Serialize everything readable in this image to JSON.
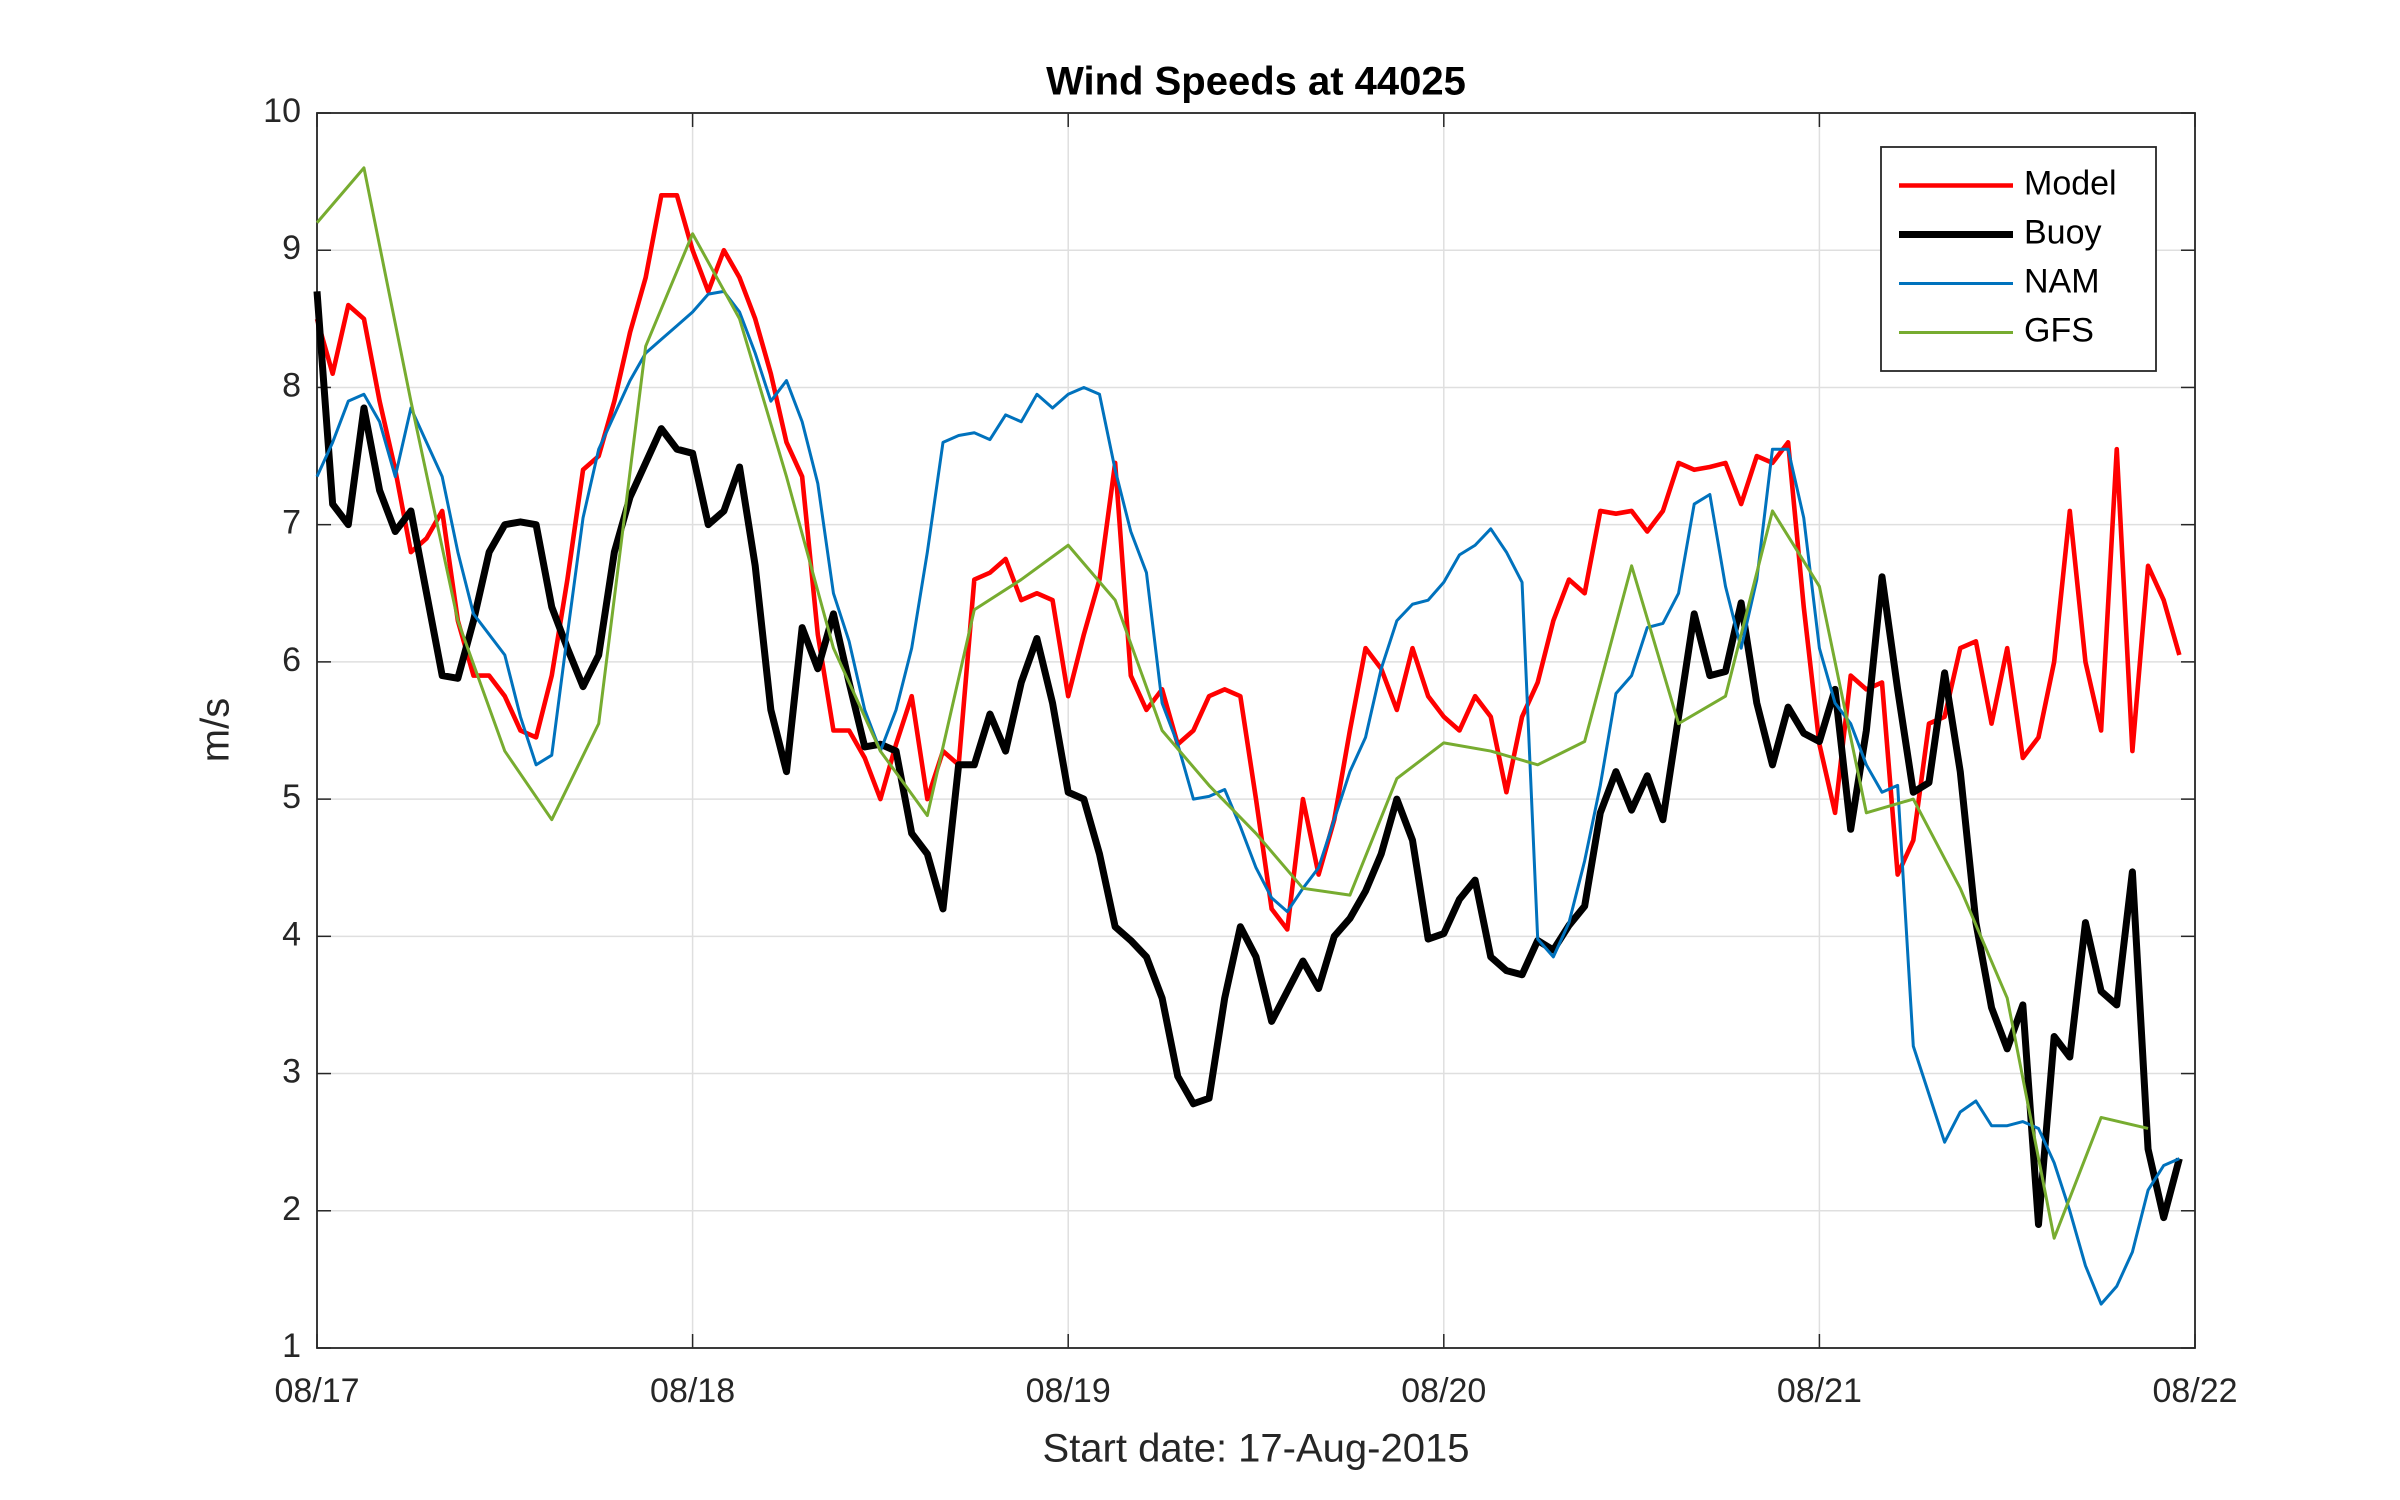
{
  "chart_data": {
    "type": "line",
    "title": "Wind Speeds at 44025",
    "x_label": "Start date: 17-Aug-2015",
    "y_label": "m/s",
    "xlim": [
      0,
      120
    ],
    "xticks": [
      {
        "value": 0,
        "label": "08/17"
      },
      {
        "value": 24,
        "label": "08/18"
      },
      {
        "value": 48,
        "label": "08/19"
      },
      {
        "value": 72,
        "label": "08/20"
      },
      {
        "value": 96,
        "label": "08/21"
      },
      {
        "value": 120,
        "label": "08/22"
      }
    ],
    "ylim": [
      1,
      10
    ],
    "yticks": [
      1,
      2,
      3,
      4,
      5,
      6,
      7,
      8,
      9,
      10
    ],
    "grid": true,
    "legend": "northeast",
    "x": [
      0,
      1,
      2,
      3,
      4,
      5,
      6,
      7,
      8,
      9,
      10,
      11,
      12,
      13,
      14,
      15,
      16,
      17,
      18,
      19,
      20,
      21,
      22,
      23,
      24,
      25,
      26,
      27,
      28,
      29,
      30,
      31,
      32,
      33,
      34,
      35,
      36,
      37,
      38,
      39,
      40,
      41,
      42,
      43,
      44,
      45,
      46,
      47,
      48,
      49,
      50,
      51,
      52,
      53,
      54,
      55,
      56,
      57,
      58,
      59,
      60,
      61,
      62,
      63,
      64,
      65,
      66,
      67,
      68,
      69,
      70,
      71,
      72,
      73,
      74,
      75,
      76,
      77,
      78,
      79,
      80,
      81,
      82,
      83,
      84,
      85,
      86,
      87,
      88,
      89,
      90,
      91,
      92,
      93,
      94,
      95,
      96,
      97,
      98,
      99,
      100,
      101,
      102,
      103,
      104,
      105,
      106,
      107,
      108,
      109,
      110,
      111,
      112,
      113,
      114,
      115,
      116,
      117,
      118,
      119
    ],
    "series": [
      {
        "name": "Model",
        "color": "#ff0000",
        "width": 4.6,
        "values": [
          8.5,
          8.1,
          8.6,
          8.5,
          7.9,
          7.4,
          6.8,
          6.9,
          7.1,
          6.3,
          5.9,
          5.9,
          5.75,
          5.5,
          5.45,
          5.9,
          6.6,
          7.4,
          7.5,
          7.9,
          8.4,
          8.8,
          9.4,
          9.4,
          9.0,
          8.7,
          9.0,
          8.8,
          8.5,
          8.1,
          7.6,
          7.35,
          6.2,
          5.5,
          5.5,
          5.3,
          5.0,
          5.4,
          5.75,
          5.0,
          5.35,
          5.25,
          6.6,
          6.65,
          6.75,
          6.45,
          6.5,
          6.45,
          5.75,
          6.2,
          6.6,
          7.45,
          5.9,
          5.65,
          5.8,
          5.4,
          5.5,
          5.75,
          5.8,
          5.75,
          5.0,
          4.2,
          4.05,
          5.0,
          4.45,
          4.85,
          5.5,
          6.1,
          5.95,
          5.65,
          6.1,
          5.75,
          5.6,
          5.5,
          5.75,
          5.6,
          5.05,
          5.6,
          5.85,
          6.3,
          6.6,
          6.5,
          7.1,
          7.08,
          7.1,
          6.95,
          7.1,
          7.45,
          7.4,
          7.42,
          7.45,
          7.15,
          7.5,
          7.45,
          7.6,
          6.4,
          5.4,
          4.9,
          5.9,
          5.8,
          5.85,
          4.45,
          4.7,
          5.55,
          5.6,
          6.1,
          6.15,
          5.55,
          6.1,
          5.3,
          5.45,
          6.0,
          7.1,
          6.0,
          5.5,
          7.55,
          5.35,
          6.7,
          6.45,
          6.05
        ]
      },
      {
        "name": "Buoy",
        "color": "#000000",
        "width": 7,
        "values": [
          8.7,
          7.15,
          7.0,
          7.85,
          7.25,
          6.95,
          7.1,
          6.5,
          5.9,
          5.88,
          6.3,
          6.8,
          7.0,
          7.02,
          7.0,
          6.4,
          6.1,
          5.82,
          6.05,
          6.8,
          7.2,
          7.45,
          7.7,
          7.55,
          7.52,
          7.0,
          7.1,
          7.42,
          6.7,
          5.65,
          5.2,
          6.25,
          5.95,
          6.35,
          5.85,
          5.38,
          5.4,
          5.35,
          4.75,
          4.6,
          4.2,
          5.25,
          5.25,
          5.62,
          5.35,
          5.85,
          6.17,
          5.7,
          5.05,
          5.0,
          4.6,
          4.07,
          3.97,
          3.85,
          3.55,
          2.98,
          2.78,
          2.82,
          3.55,
          4.07,
          3.85,
          3.38,
          3.6,
          3.82,
          3.62,
          4.0,
          4.13,
          4.33,
          4.6,
          5.0,
          4.7,
          3.98,
          4.02,
          4.27,
          4.41,
          3.85,
          3.75,
          3.72,
          3.97,
          3.9,
          4.08,
          4.22,
          4.9,
          5.2,
          4.92,
          5.17,
          4.85,
          5.6,
          6.35,
          5.9,
          5.93,
          6.43,
          5.7,
          5.25,
          5.67,
          5.48,
          5.42,
          5.8,
          4.78,
          5.5,
          6.62,
          5.8,
          5.05,
          5.12,
          5.92,
          5.2,
          4.1,
          3.48,
          3.18,
          3.5,
          1.9,
          3.27,
          3.12,
          4.1,
          3.6,
          3.5,
          4.47,
          2.45,
          1.95,
          2.38
        ]
      },
      {
        "name": "NAM",
        "color": "#0072bd",
        "width": 3,
        "values": [
          7.35,
          7.6,
          7.9,
          7.95,
          7.75,
          7.35,
          7.85,
          7.6,
          7.35,
          6.8,
          6.35,
          6.2,
          6.05,
          5.6,
          5.25,
          5.32,
          6.2,
          7.05,
          7.55,
          7.8,
          8.05,
          8.25,
          8.35,
          8.45,
          8.55,
          8.68,
          8.7,
          8.55,
          8.25,
          7.9,
          8.05,
          7.75,
          7.3,
          6.5,
          6.15,
          5.65,
          5.35,
          5.65,
          6.1,
          6.8,
          7.6,
          7.65,
          7.67,
          7.62,
          7.8,
          7.75,
          7.95,
          7.85,
          7.95,
          8.0,
          7.95,
          7.4,
          6.95,
          6.65,
          5.7,
          5.4,
          5.0,
          5.02,
          5.07,
          4.8,
          4.5,
          4.28,
          4.18,
          4.35,
          4.5,
          4.85,
          5.2,
          5.45,
          5.95,
          6.3,
          6.42,
          6.45,
          6.58,
          6.78,
          6.85,
          6.97,
          6.8,
          6.58,
          3.98,
          3.85,
          4.1,
          4.55,
          5.1,
          5.77,
          5.9,
          6.25,
          6.28,
          6.5,
          7.15,
          7.22,
          6.55,
          6.1,
          6.6,
          7.55,
          7.55,
          7.05,
          6.1,
          5.7,
          5.55,
          5.25,
          5.05,
          5.1,
          3.2,
          2.85,
          2.5,
          2.72,
          2.8,
          2.62,
          2.62,
          2.65,
          2.6,
          2.35,
          2.0,
          1.6,
          1.32,
          1.45,
          1.7,
          2.15,
          2.33,
          2.38
        ]
      },
      {
        "name": "GFS",
        "color": "#77ac30",
        "width": 3,
        "x": [
          0,
          3,
          6,
          9,
          12,
          15,
          18,
          21,
          24,
          27,
          30,
          33,
          36,
          39,
          42,
          45,
          48,
          51,
          54,
          57,
          60,
          63,
          66,
          69,
          72,
          75,
          78,
          81,
          84,
          87,
          90,
          93,
          96,
          99,
          102,
          105,
          108,
          111,
          114,
          117
        ],
        "values": [
          9.2,
          9.6,
          7.9,
          6.3,
          5.35,
          4.85,
          5.55,
          8.3,
          9.12,
          8.5,
          7.35,
          6.1,
          5.35,
          4.88,
          6.38,
          6.6,
          6.85,
          6.45,
          5.5,
          5.1,
          4.75,
          4.35,
          4.3,
          5.15,
          5.41,
          5.35,
          5.25,
          5.42,
          6.7,
          5.55,
          5.75,
          7.1,
          6.55,
          4.9,
          5.0,
          4.35,
          3.55,
          1.8,
          2.68,
          2.6
        ]
      }
    ]
  }
}
